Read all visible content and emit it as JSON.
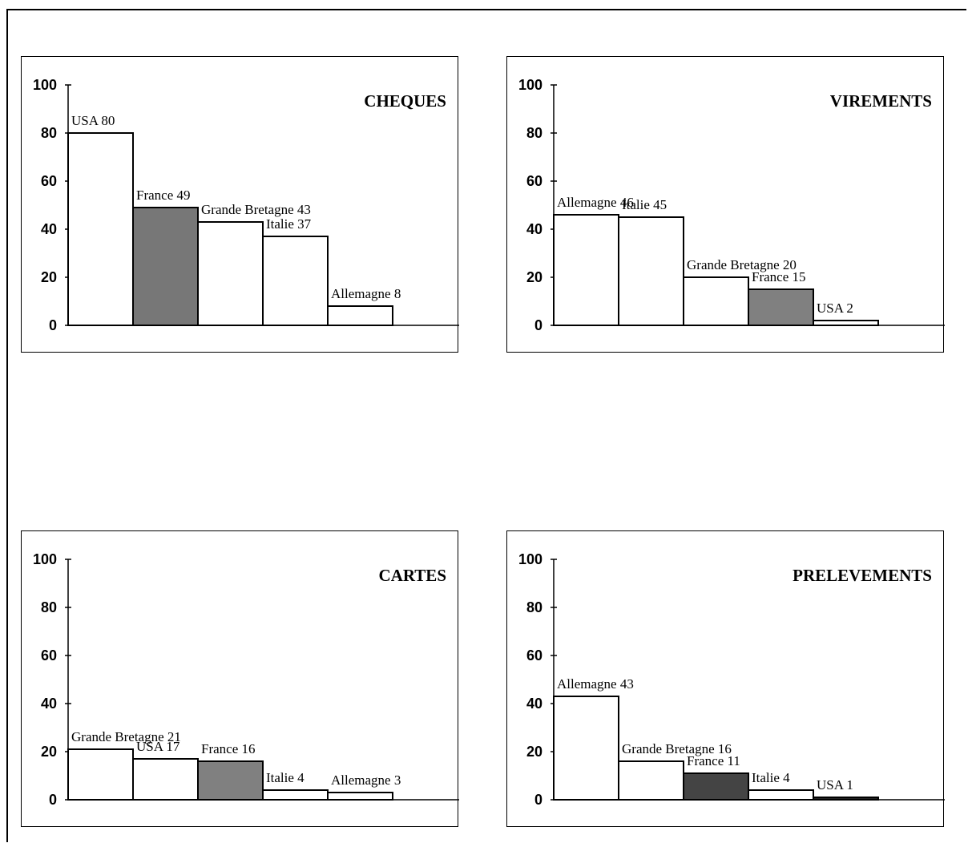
{
  "chart_data": [
    {
      "type": "bar",
      "title": "CHEQUES",
      "ylim": [
        0,
        100
      ],
      "yticks": [
        0,
        20,
        40,
        60,
        80,
        100
      ],
      "categories": [
        "USA",
        "France",
        "Grande Bretagne",
        "Italie",
        "Allemagne"
      ],
      "values": [
        80,
        49,
        43,
        37,
        8
      ],
      "labels": [
        "USA 80",
        "France 49",
        "Grande Bretagne 43",
        "Italie 37",
        "Allemagne 8"
      ],
      "colors": [
        "#ffffff",
        "#777777",
        "#ffffff",
        "#ffffff",
        "#ffffff"
      ]
    },
    {
      "type": "bar",
      "title": "VIREMENTS",
      "ylim": [
        0,
        100
      ],
      "yticks": [
        0,
        20,
        40,
        60,
        80,
        100
      ],
      "categories": [
        "Allemagne",
        "Italie",
        "Grande Bretagne",
        "France",
        "USA"
      ],
      "values": [
        46,
        45,
        20,
        15,
        2
      ],
      "labels": [
        "Allemagne 46",
        "Italie 45",
        "Grande Bretagne 20",
        "France 15",
        "USA 2"
      ],
      "colors": [
        "#ffffff",
        "#ffffff",
        "#ffffff",
        "#808080",
        "#ffffff"
      ]
    },
    {
      "type": "bar",
      "title": "CARTES",
      "ylim": [
        0,
        100
      ],
      "yticks": [
        0,
        20,
        40,
        60,
        80,
        100
      ],
      "categories": [
        "Grande Bretagne",
        "USA",
        "France",
        "Italie",
        "Allemagne"
      ],
      "values": [
        21,
        17,
        16,
        4,
        3
      ],
      "labels": [
        "Grande Bretagne 21",
        "USA 17",
        "France 16",
        "Italie 4",
        "Allemagne 3"
      ],
      "colors": [
        "#ffffff",
        "#ffffff",
        "#808080",
        "#ffffff",
        "#ffffff"
      ]
    },
    {
      "type": "bar",
      "title": "PRELEVEMENTS",
      "ylim": [
        0,
        100
      ],
      "yticks": [
        0,
        20,
        40,
        60,
        80,
        100
      ],
      "categories": [
        "Allemagne",
        "Grande Bretagne",
        "France",
        "Italie",
        "USA"
      ],
      "values": [
        43,
        16,
        11,
        4,
        1
      ],
      "labels": [
        "Allemagne 43",
        "Grande Bretagne 16",
        "France 11",
        "Italie 4",
        "USA 1"
      ],
      "colors": [
        "#ffffff",
        "#ffffff",
        "#444444",
        "#ffffff",
        "#222222"
      ]
    }
  ]
}
